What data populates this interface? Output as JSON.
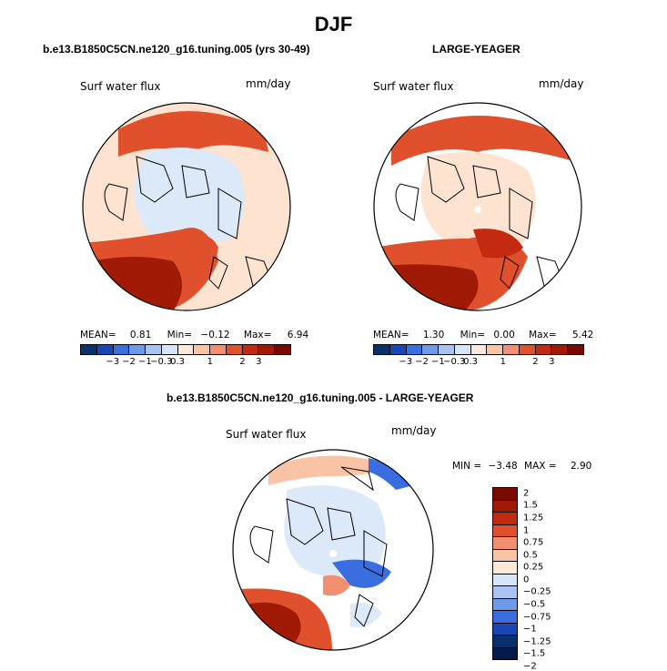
{
  "main_title": "DJF",
  "panels": [
    {
      "title": "b.e13.B1850C5CN.ne120_g16.tuning.005 (yrs 30-49)",
      "variable": "Surf water flux",
      "units": "mm/day",
      "stats": {
        "mean_label": "MEAN=",
        "mean": "0.81",
        "min_label": "Min=",
        "min": "−0.12",
        "max_label": "Max=",
        "max": "6.94"
      }
    },
    {
      "title": "LARGE-YEAGER",
      "variable": "Surf water flux",
      "units": "mm/day",
      "stats": {
        "mean_label": "MEAN=",
        "mean": "1.30",
        "min_label": "Min=",
        "min": "0.00",
        "max_label": "Max=",
        "max": "5.42"
      }
    },
    {
      "title": "b.e13.B1850C5CN.ne120_g16.tuning.005 - LARGE-YEAGER",
      "variable": "Surf water flux",
      "units": "mm/day",
      "stats": {
        "min_label": "MIN =",
        "min": "−3.48",
        "max_label": "MAX =",
        "max": "2.90"
      }
    }
  ],
  "colorbar_main": {
    "colors": [
      "#08306b",
      "#1846b4",
      "#3a6ee0",
      "#6f9ae8",
      "#a9c4f0",
      "#d6e6f8",
      "#fde9d9",
      "#f9c4a6",
      "#f09070",
      "#e0502c",
      "#c42a10",
      "#a11a05",
      "#7a0a00"
    ],
    "tick_labels": [
      "−3",
      "−2",
      "−1",
      "−0.3",
      "0.3",
      "1",
      "2",
      "3"
    ]
  },
  "colorbar_diff": {
    "colors": [
      "#7a0a00",
      "#a11a05",
      "#c42a10",
      "#e0502c",
      "#f09070",
      "#f9c4a6",
      "#fde9d9",
      "#d6e6f8",
      "#a9c4f0",
      "#6f9ae8",
      "#3a6ee0",
      "#1846b4",
      "#08306b",
      "#041a4a"
    ],
    "tick_labels": [
      "2",
      "1.5",
      "1.25",
      "1",
      "0.75",
      "0.5",
      "0.25",
      "0",
      "−0.25",
      "−0.5",
      "−0.75",
      "−1",
      "−1.25",
      "−1.5",
      "−2"
    ]
  },
  "map_colors": {
    "ocean_warm": "#fde3d0",
    "ocean_light_blue": "#dbe9f8",
    "red_mid": "#e0502c",
    "red_dark": "#a11a05",
    "blue_mid": "#3a6ee0",
    "land": "#ffffff",
    "coast": "#000000"
  }
}
